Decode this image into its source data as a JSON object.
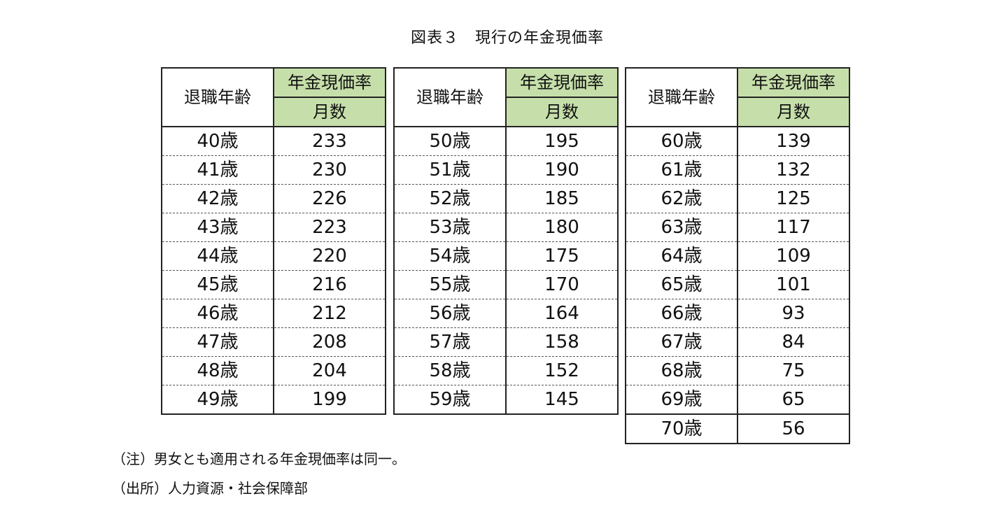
{
  "title": "図表３　現行の年金現価率",
  "headers": {
    "age": "退職年齢",
    "rate": "年金現価率",
    "unit": "月数"
  },
  "tables": [
    {
      "rows": [
        {
          "age": "40歳",
          "value": "233"
        },
        {
          "age": "41歳",
          "value": "230"
        },
        {
          "age": "42歳",
          "value": "226"
        },
        {
          "age": "43歳",
          "value": "223"
        },
        {
          "age": "44歳",
          "value": "220"
        },
        {
          "age": "45歳",
          "value": "216"
        },
        {
          "age": "46歳",
          "value": "212"
        },
        {
          "age": "47歳",
          "value": "208"
        },
        {
          "age": "48歳",
          "value": "204"
        },
        {
          "age": "49歳",
          "value": "199"
        }
      ]
    },
    {
      "rows": [
        {
          "age": "50歳",
          "value": "195"
        },
        {
          "age": "51歳",
          "value": "190"
        },
        {
          "age": "52歳",
          "value": "185"
        },
        {
          "age": "53歳",
          "value": "180"
        },
        {
          "age": "54歳",
          "value": "175"
        },
        {
          "age": "55歳",
          "value": "170"
        },
        {
          "age": "56歳",
          "value": "164"
        },
        {
          "age": "57歳",
          "value": "158"
        },
        {
          "age": "58歳",
          "value": "152"
        },
        {
          "age": "59歳",
          "value": "145"
        }
      ]
    },
    {
      "rows": [
        {
          "age": "60歳",
          "value": "139"
        },
        {
          "age": "61歳",
          "value": "132"
        },
        {
          "age": "62歳",
          "value": "125"
        },
        {
          "age": "63歳",
          "value": "117"
        },
        {
          "age": "64歳",
          "value": "109"
        },
        {
          "age": "65歳",
          "value": "101"
        },
        {
          "age": "66歳",
          "value": "93"
        },
        {
          "age": "67歳",
          "value": "84"
        },
        {
          "age": "68歳",
          "value": "75"
        },
        {
          "age": "69歳",
          "value": "65"
        },
        {
          "age": "70歳",
          "value": "56"
        }
      ]
    }
  ],
  "notes": {
    "note": "（注）男女とも適用される年金現価率は同一。",
    "source": "（出所）人力資源・社会保障部"
  },
  "colors": {
    "header_fill": "#c6dfaa",
    "border": "#222222"
  }
}
